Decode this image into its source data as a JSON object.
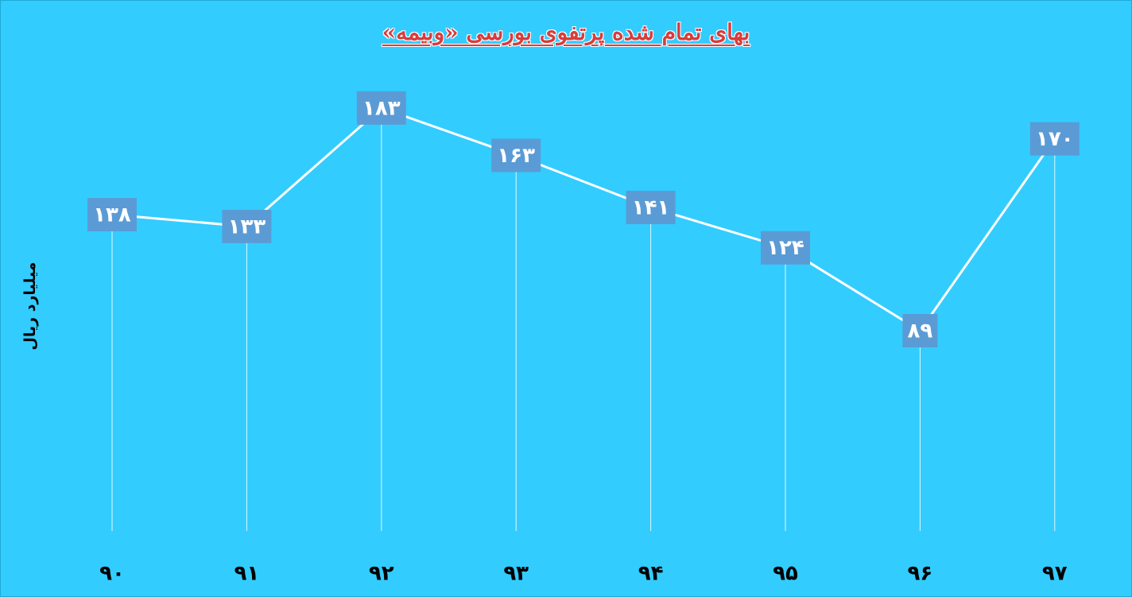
{
  "chart_data": {
    "type": "line",
    "title": "بهای تمام شده پرتفوی بورسی «وبیمه»",
    "ylabel": "میلیارد ریال",
    "xlabel": "",
    "categories": [
      "۹۰",
      "۹۱",
      "۹۲",
      "۹۳",
      "۹۴",
      "۹۵",
      "۹۶",
      "۹۷"
    ],
    "values": [
      138,
      133,
      183,
      163,
      141,
      124,
      89,
      170
    ],
    "data_labels": [
      "۱۳۸",
      "۱۳۳",
      "۱۸۳",
      "۱۶۳",
      "۱۴۱",
      "۱۲۴",
      "۸۹",
      "۱۷۰"
    ],
    "grid": false,
    "legend": "none",
    "colors": {
      "background": "#33ccff",
      "line": "#ffffff",
      "label_box": "#5b9bd5",
      "label_text": "#ffffff",
      "title": "#d93c3c"
    }
  }
}
